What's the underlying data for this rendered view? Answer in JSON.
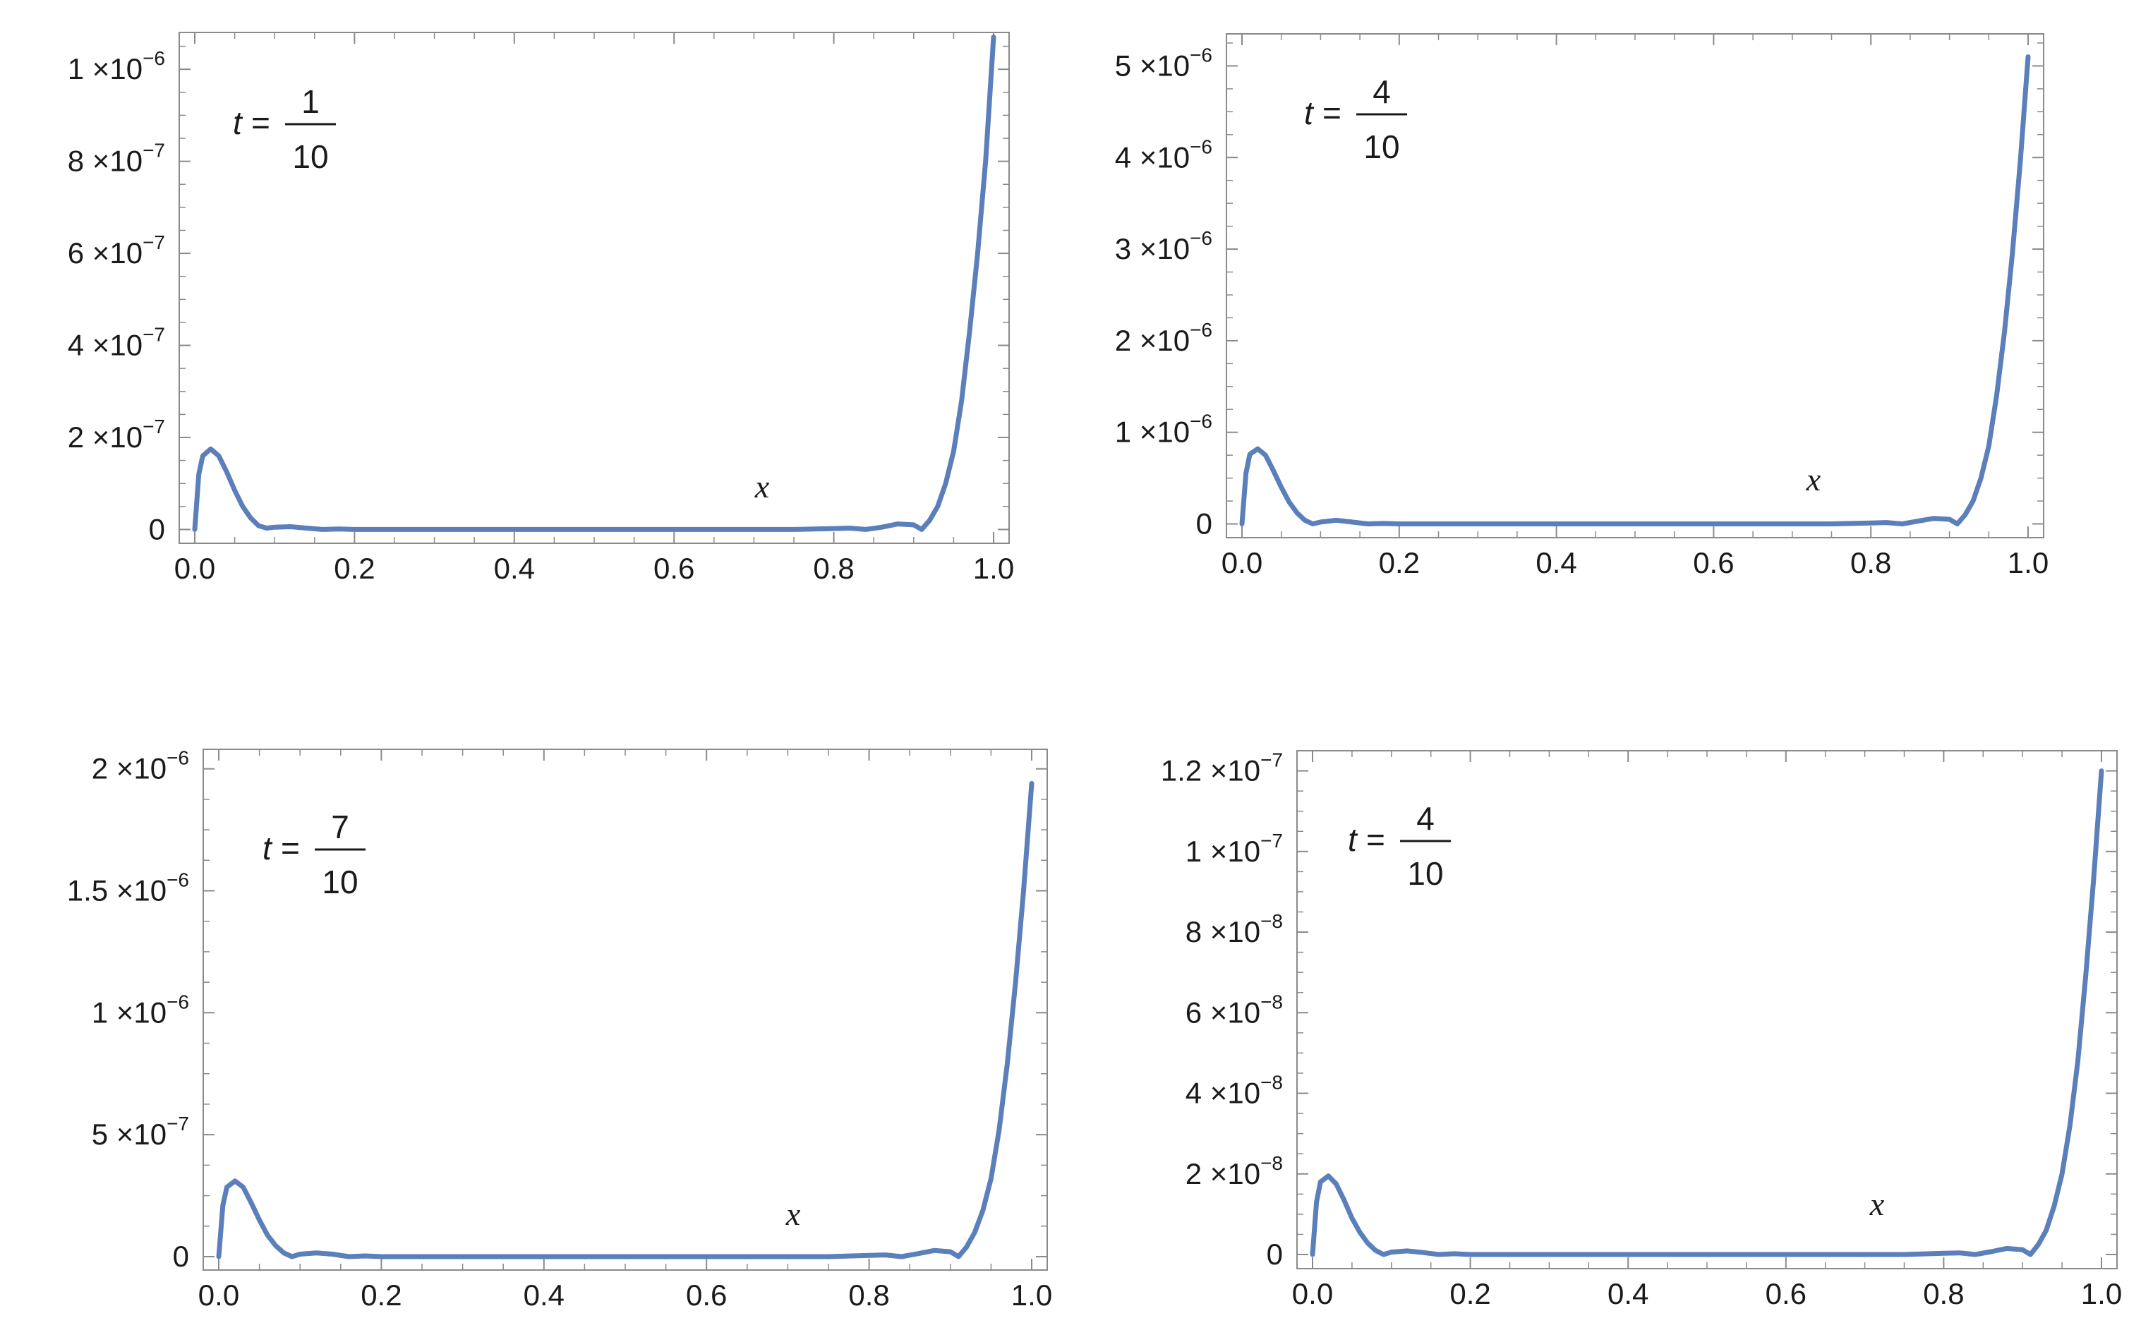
{
  "chart_data": [
    {
      "type": "line",
      "title": "",
      "annotation": {
        "var": "t",
        "eq": "=",
        "num": "1",
        "den": "10"
      },
      "xlabel": "x",
      "ylabel": "",
      "xlim": [
        0,
        1
      ],
      "ylim": [
        -3e-08,
        1.08e-06
      ],
      "xticks": [
        {
          "v": 0.0,
          "label": "0.0"
        },
        {
          "v": 0.2,
          "label": "0.2"
        },
        {
          "v": 0.4,
          "label": "0.4"
        },
        {
          "v": 0.6,
          "label": "0.6"
        },
        {
          "v": 0.8,
          "label": "0.8"
        },
        {
          "v": 1.0,
          "label": "1.0"
        }
      ],
      "yticks": [
        {
          "v": 0,
          "m": "0",
          "e": ""
        },
        {
          "v": 2e-07,
          "m": "2 ×10",
          "e": "−7"
        },
        {
          "v": 4e-07,
          "m": "4 ×10",
          "e": "−7"
        },
        {
          "v": 6e-07,
          "m": "6 ×10",
          "e": "−7"
        },
        {
          "v": 8e-07,
          "m": "8 ×10",
          "e": "−7"
        },
        {
          "v": 1e-06,
          "m": "1 ×10",
          "e": "−6"
        }
      ],
      "grid": false,
      "series": [
        {
          "color": "#5b7fba",
          "x": [
            0.0,
            0.005,
            0.01,
            0.02,
            0.03,
            0.04,
            0.05,
            0.06,
            0.07,
            0.08,
            0.09,
            0.1,
            0.12,
            0.14,
            0.16,
            0.18,
            0.2,
            0.25,
            0.3,
            0.4,
            0.5,
            0.6,
            0.7,
            0.75,
            0.8,
            0.82,
            0.84,
            0.86,
            0.88,
            0.9,
            0.91,
            0.92,
            0.93,
            0.94,
            0.95,
            0.96,
            0.97,
            0.98,
            0.99,
            1.0
          ],
          "y": [
            0,
            1.2e-07,
            1.6e-07,
            1.75e-07,
            1.6e-07,
            1.25e-07,
            8.5e-08,
            5e-08,
            2.5e-08,
            8e-09,
            3e-09,
            5e-09,
            6e-09,
            3e-09,
            0,
            1e-09,
            0,
            0,
            0,
            0,
            0,
            0,
            0,
            0,
            2e-09,
            3e-09,
            0,
            5e-09,
            1.2e-08,
            1e-08,
            0,
            2e-08,
            5e-08,
            1e-07,
            1.7e-07,
            2.8e-07,
            4.3e-07,
            6e-07,
            8e-07,
            1.07e-06
          ]
        }
      ]
    },
    {
      "type": "line",
      "title": "",
      "annotation": {
        "var": "t",
        "eq": "=",
        "num": "4",
        "den": "10"
      },
      "xlabel": "x",
      "ylabel": "",
      "xlim": [
        0,
        1
      ],
      "ylim": [
        -1.5e-07,
        5.35e-06
      ],
      "xticks": [
        {
          "v": 0.0,
          "label": "0.0"
        },
        {
          "v": 0.2,
          "label": "0.2"
        },
        {
          "v": 0.4,
          "label": "0.4"
        },
        {
          "v": 0.6,
          "label": "0.6"
        },
        {
          "v": 0.8,
          "label": "0.8"
        },
        {
          "v": 1.0,
          "label": "1.0"
        }
      ],
      "yticks": [
        {
          "v": 0,
          "m": "0",
          "e": ""
        },
        {
          "v": 1e-06,
          "m": "1 ×10",
          "e": "−6"
        },
        {
          "v": 2e-06,
          "m": "2 ×10",
          "e": "−6"
        },
        {
          "v": 3e-06,
          "m": "3 ×10",
          "e": "−6"
        },
        {
          "v": 4e-06,
          "m": "4 ×10",
          "e": "−6"
        },
        {
          "v": 5e-06,
          "m": "5 ×10",
          "e": "−6"
        }
      ],
      "grid": false,
      "series": [
        {
          "color": "#5b7fba",
          "x": [
            0.0,
            0.005,
            0.01,
            0.02,
            0.03,
            0.04,
            0.05,
            0.06,
            0.07,
            0.08,
            0.09,
            0.1,
            0.12,
            0.14,
            0.16,
            0.18,
            0.2,
            0.25,
            0.3,
            0.4,
            0.5,
            0.6,
            0.7,
            0.75,
            0.8,
            0.82,
            0.84,
            0.86,
            0.88,
            0.9,
            0.91,
            0.92,
            0.93,
            0.94,
            0.95,
            0.96,
            0.97,
            0.98,
            0.99,
            1.0
          ],
          "y": [
            0,
            5.5e-07,
            7.6e-07,
            8.2e-07,
            7.5e-07,
            5.8e-07,
            4e-07,
            2.4e-07,
            1.2e-07,
            4e-08,
            0,
            2e-08,
            4e-08,
            2e-08,
            0,
            5e-09,
            0,
            0,
            0,
            0,
            0,
            0,
            0,
            0,
            1e-08,
            1.5e-08,
            0,
            3e-08,
            6e-08,
            5e-08,
            0,
            1e-07,
            2.5e-07,
            5e-07,
            8.5e-07,
            1.4e-06,
            2.1e-06,
            2.95e-06,
            3.95e-06,
            5.1e-06
          ]
        }
      ]
    },
    {
      "type": "line",
      "title": "",
      "annotation": {
        "var": "t",
        "eq": "=",
        "num": "7",
        "den": "10"
      },
      "xlabel": "x",
      "ylabel": "",
      "xlim": [
        0,
        1
      ],
      "ylim": [
        -5.5e-08,
        2.08e-06
      ],
      "xticks": [
        {
          "v": 0.0,
          "label": "0.0"
        },
        {
          "v": 0.2,
          "label": "0.2"
        },
        {
          "v": 0.4,
          "label": "0.4"
        },
        {
          "v": 0.6,
          "label": "0.6"
        },
        {
          "v": 0.8,
          "label": "0.8"
        },
        {
          "v": 1.0,
          "label": "1.0"
        }
      ],
      "yticks": [
        {
          "v": 0,
          "m": "0",
          "e": ""
        },
        {
          "v": 5e-07,
          "m": "5 ×10",
          "e": "−7"
        },
        {
          "v": 1e-06,
          "m": "1 ×10",
          "e": "−6"
        },
        {
          "v": 1.5e-06,
          "m": "1.5 ×10",
          "e": "−6"
        },
        {
          "v": 2e-06,
          "m": "2 ×10",
          "e": "−6"
        }
      ],
      "grid": false,
      "series": [
        {
          "color": "#5b7fba",
          "x": [
            0.0,
            0.005,
            0.01,
            0.02,
            0.03,
            0.04,
            0.05,
            0.06,
            0.07,
            0.08,
            0.09,
            0.1,
            0.12,
            0.14,
            0.16,
            0.18,
            0.2,
            0.25,
            0.3,
            0.4,
            0.5,
            0.6,
            0.7,
            0.75,
            0.8,
            0.82,
            0.84,
            0.86,
            0.88,
            0.9,
            0.91,
            0.92,
            0.93,
            0.94,
            0.95,
            0.96,
            0.97,
            0.98,
            0.99,
            1.0
          ],
          "y": [
            0,
            2.1e-07,
            2.85e-07,
            3.1e-07,
            2.85e-07,
            2.2e-07,
            1.5e-07,
            8.8e-08,
            4.5e-08,
            1.5e-08,
            0,
            1e-08,
            1.5e-08,
            1e-08,
            0,
            3e-09,
            0,
            0,
            0,
            0,
            0,
            0,
            0,
            0,
            5e-09,
            7e-09,
            0,
            1.2e-08,
            2.5e-08,
            2e-08,
            0,
            4e-08,
            1e-07,
            1.9e-07,
            3.2e-07,
            5.2e-07,
            7.9e-07,
            1.12e-06,
            1.5e-06,
            1.94e-06
          ]
        }
      ]
    },
    {
      "type": "line",
      "title": "",
      "annotation": {
        "var": "t",
        "eq": "=",
        "num": "4",
        "den": "10"
      },
      "xlabel": "x",
      "ylabel": "",
      "xlim": [
        0,
        1
      ],
      "ylim": [
        -3.5e-09,
        1.25e-07
      ],
      "xticks": [
        {
          "v": 0.0,
          "label": "0.0"
        },
        {
          "v": 0.2,
          "label": "0.2"
        },
        {
          "v": 0.4,
          "label": "0.4"
        },
        {
          "v": 0.6,
          "label": "0.6"
        },
        {
          "v": 0.8,
          "label": "0.8"
        },
        {
          "v": 1.0,
          "label": "1.0"
        }
      ],
      "yticks": [
        {
          "v": 0,
          "m": "0",
          "e": ""
        },
        {
          "v": 2e-08,
          "m": "2 ×10",
          "e": "−8"
        },
        {
          "v": 4e-08,
          "m": "4 ×10",
          "e": "−8"
        },
        {
          "v": 6e-08,
          "m": "6 ×10",
          "e": "−8"
        },
        {
          "v": 8e-08,
          "m": "8 ×10",
          "e": "−8"
        },
        {
          "v": 1e-07,
          "m": "1 ×10",
          "e": "−7"
        },
        {
          "v": 1.2e-07,
          "m": "1.2 ×10",
          "e": "−7"
        }
      ],
      "grid": false,
      "series": [
        {
          "color": "#5b7fba",
          "x": [
            0.0,
            0.005,
            0.01,
            0.02,
            0.03,
            0.04,
            0.05,
            0.06,
            0.07,
            0.08,
            0.09,
            0.1,
            0.12,
            0.14,
            0.16,
            0.18,
            0.2,
            0.25,
            0.3,
            0.4,
            0.5,
            0.6,
            0.7,
            0.75,
            0.8,
            0.82,
            0.84,
            0.86,
            0.88,
            0.9,
            0.91,
            0.92,
            0.93,
            0.94,
            0.95,
            0.96,
            0.97,
            0.98,
            0.99,
            1.0
          ],
          "y": [
            0,
            1.3e-08,
            1.8e-08,
            1.95e-08,
            1.75e-08,
            1.35e-08,
            9e-09,
            5.5e-09,
            2.8e-09,
            1e-09,
            0,
            6e-10,
            9e-10,
            5e-10,
            0,
            2e-10,
            0,
            0,
            0,
            0,
            0,
            0,
            0,
            0,
            3e-10,
            4e-10,
            0,
            7e-10,
            1.5e-09,
            1.2e-09,
            0,
            2.5e-09,
            6e-09,
            1.2e-08,
            2e-08,
            3.2e-08,
            4.8e-08,
            6.9e-08,
            9.3e-08,
            1.2e-07
          ]
        }
      ]
    }
  ]
}
